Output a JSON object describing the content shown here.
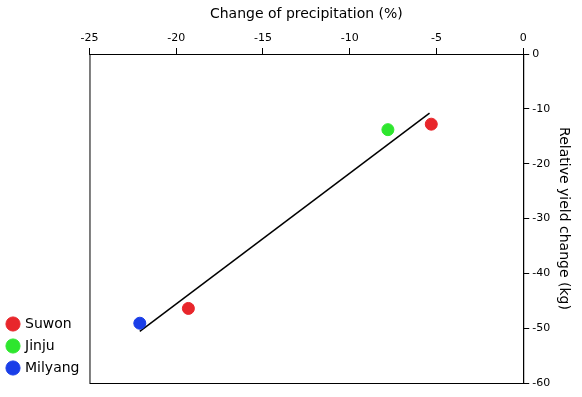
{
  "chart_data": {
    "type": "scatter",
    "x_label": "Change of precipitation (%)",
    "y_label": "Relative yield change (kg)",
    "series": [
      {
        "name": "Suwon",
        "color": "#e8262b",
        "marker": "circle",
        "x": [
          -5.3,
          -19.3
        ],
        "values": [
          -12.8,
          -46.4
        ]
      },
      {
        "name": "Jinju",
        "color": "#2ee62e",
        "marker": "circle",
        "x": [
          -7.8
        ],
        "values": [
          -13.8
        ]
      },
      {
        "name": "Milyang",
        "color": "#1a3ee8",
        "marker": "circle",
        "x": [
          -22.1
        ],
        "values": [
          -49.1
        ]
      }
    ],
    "trend_line": {
      "color": "#000000",
      "line_style": "solid",
      "x": [
        -22.1,
        -5.4
      ],
      "values": [
        -50.6,
        -10.8
      ]
    },
    "xlim": [
      -25,
      0
    ],
    "xticks": [
      -25,
      -20,
      -15,
      -10,
      -5,
      0
    ],
    "ylim": [
      -60,
      0
    ],
    "yticks": [
      -60,
      -50,
      -40,
      -30,
      -20,
      -10,
      0
    ],
    "grid": false,
    "legend": "left"
  }
}
